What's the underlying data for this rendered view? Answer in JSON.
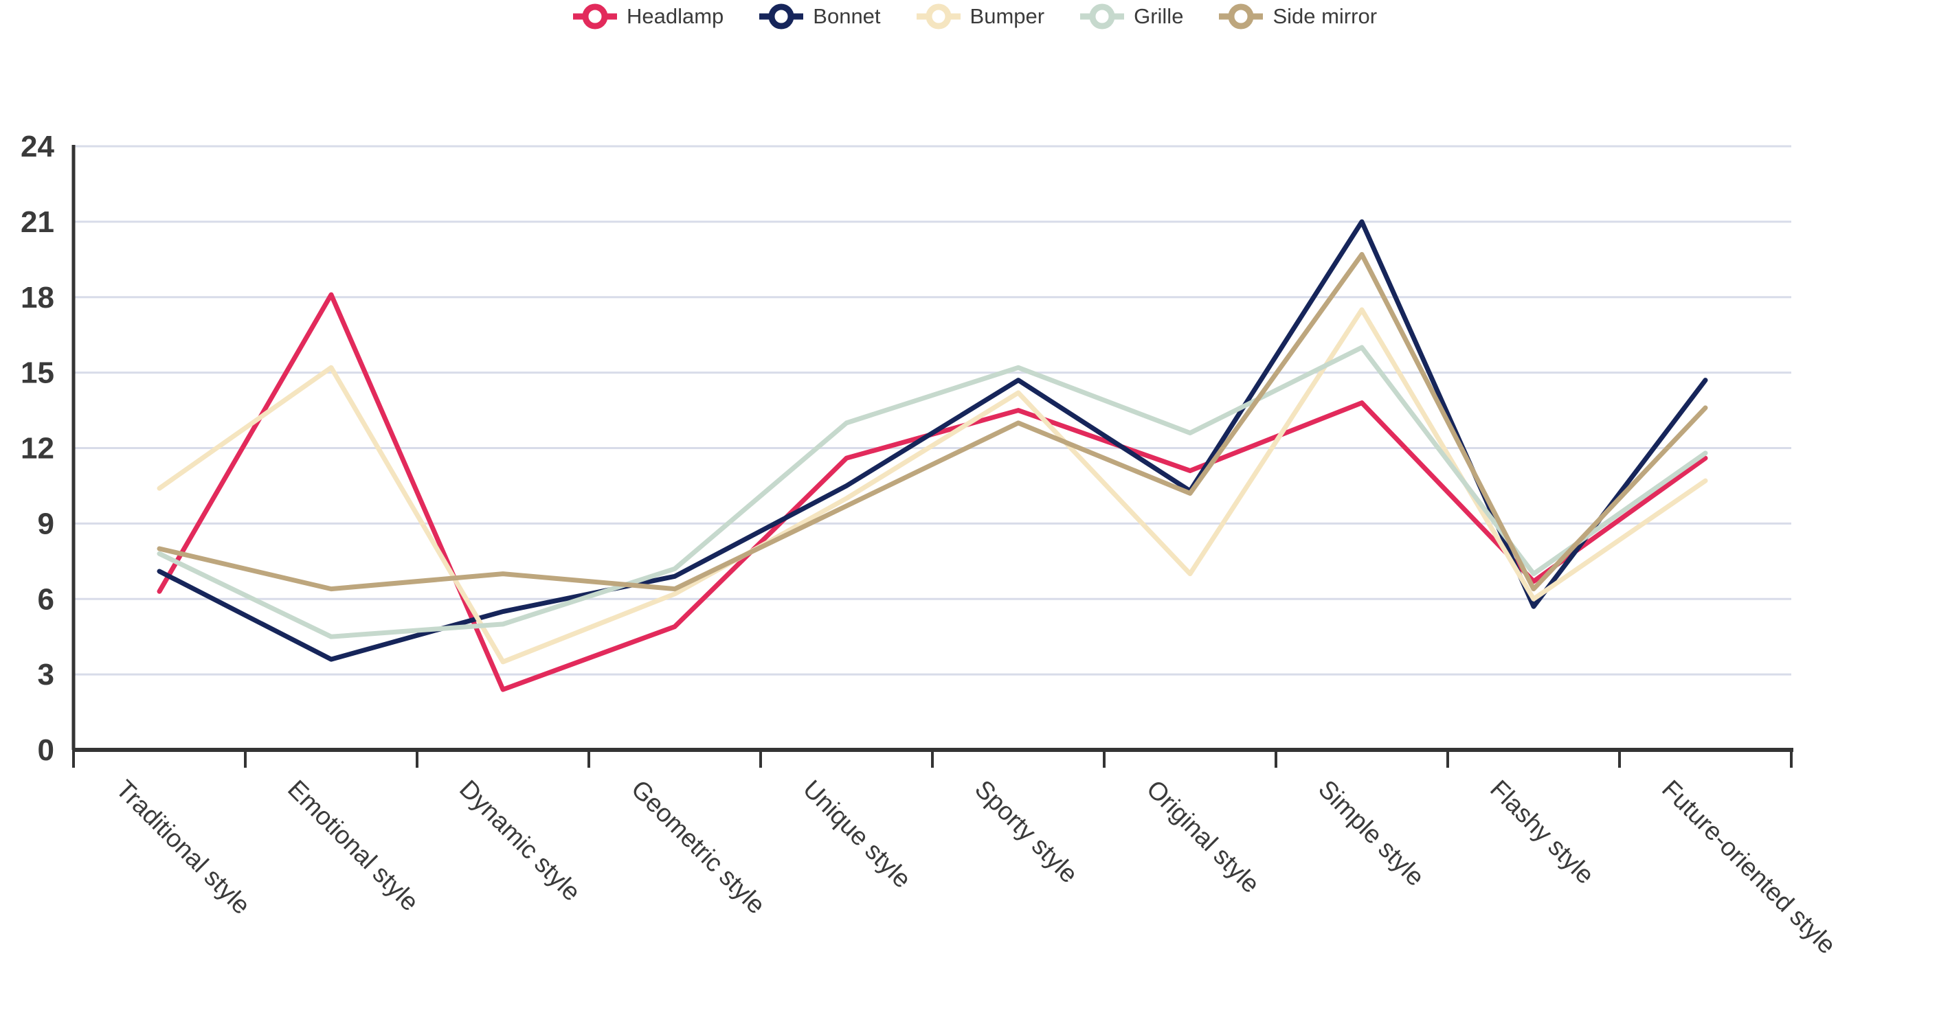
{
  "chart_data": {
    "type": "line",
    "title": "",
    "xlabel": "",
    "ylabel": "",
    "ylim": [
      0,
      24
    ],
    "y_tick_step": 3,
    "y_ticks": [
      "0",
      "3",
      "6",
      "9",
      "12",
      "15",
      "18",
      "21",
      "24"
    ],
    "grid": true,
    "legend_position": "top",
    "categories": [
      "Traditional style",
      "Emotional style",
      "Dynamic style",
      "Geometric style",
      "Unique style",
      "Sporty style",
      "Original style",
      "Simple style",
      "Flashy style",
      "Future-oriented style"
    ],
    "series": [
      {
        "name": "Headlamp",
        "color": "#e22a5b",
        "values": [
          6.3,
          18.1,
          2.4,
          4.9,
          11.6,
          13.5,
          11.1,
          13.8,
          6.7,
          11.6
        ]
      },
      {
        "name": "Bonnet",
        "color": "#16255a",
        "values": [
          7.1,
          3.6,
          5.5,
          6.9,
          10.5,
          14.7,
          10.3,
          21.0,
          5.7,
          14.7
        ]
      },
      {
        "name": "Bumper",
        "color": "#f5e5c0",
        "values": [
          10.4,
          15.2,
          3.5,
          6.2,
          10.0,
          14.2,
          7.0,
          17.5,
          6.0,
          10.7
        ]
      },
      {
        "name": "Grille",
        "color": "#c6d9cd",
        "values": [
          7.8,
          4.5,
          5.0,
          7.2,
          13.0,
          15.2,
          12.6,
          16.0,
          7.0,
          11.8
        ]
      },
      {
        "name": "Side mirror",
        "color": "#bda67d",
        "values": [
          8.0,
          6.4,
          7.0,
          6.4,
          9.7,
          13.0,
          10.2,
          19.7,
          6.4,
          13.6
        ]
      }
    ]
  },
  "colors": {
    "grid_line": "#d8dce9",
    "axis_line": "#343434",
    "tick_label": "#3a3a3a",
    "legend_text": "#3b3b3b",
    "background": "#ffffff"
  }
}
